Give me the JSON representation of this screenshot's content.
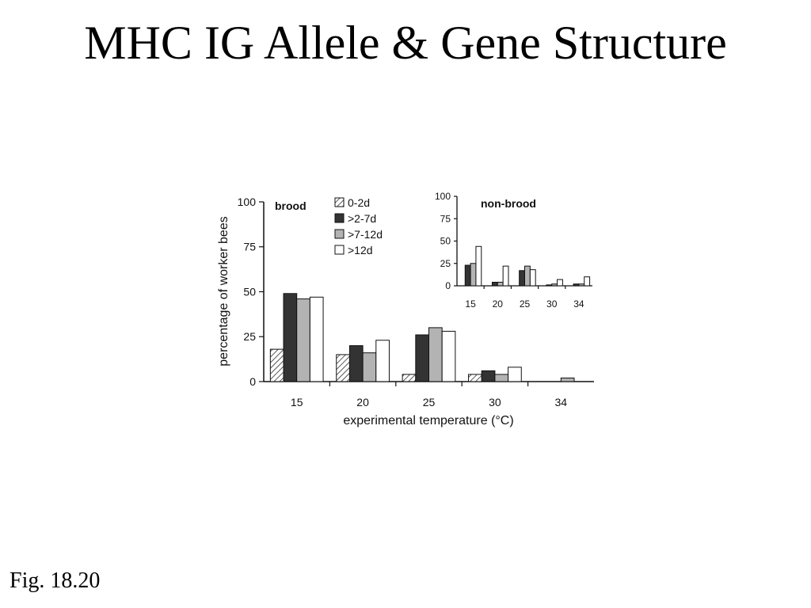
{
  "slide": {
    "title": "MHC IG Allele & Gene Structure",
    "caption": "Fig. 18.20"
  },
  "colors": {
    "s0": "#ffffff",
    "s1": "#333333",
    "s2": "#b3b3b3",
    "s3": "#ffffff",
    "stroke": "#111111"
  },
  "chart_data": [
    {
      "type": "bar",
      "panel": "main",
      "title": "brood",
      "categories": [
        "15",
        "20",
        "25",
        "30",
        "34"
      ],
      "series": [
        {
          "name": "0-2d",
          "values": [
            18,
            15,
            4,
            4,
            0
          ]
        },
        {
          "name": ">2-7d",
          "values": [
            49,
            20,
            26,
            6,
            0
          ]
        },
        {
          "name": ">7-12d",
          "values": [
            46,
            16,
            30,
            4,
            2
          ]
        },
        {
          "name": ">12d",
          "values": [
            47,
            23,
            28,
            8,
            0
          ]
        }
      ],
      "xlabel": "experimental temperature (°C)",
      "ylabel": "percentage of worker bees",
      "ylim": [
        0,
        100
      ],
      "yticks": [
        "0",
        "25",
        "50",
        "75",
        "100"
      ],
      "legend": "top-center",
      "grid": false
    },
    {
      "type": "bar",
      "panel": "inset",
      "title": "non-brood",
      "categories": [
        "15",
        "20",
        "25",
        "30",
        "34"
      ],
      "series": [
        {
          "name": "0-2d",
          "values": [
            0,
            0,
            0,
            0,
            0
          ]
        },
        {
          "name": ">2-7d",
          "values": [
            23,
            4,
            17,
            1,
            2
          ]
        },
        {
          "name": ">7-12d",
          "values": [
            25,
            4,
            22,
            2,
            2
          ]
        },
        {
          "name": ">12d",
          "values": [
            44,
            22,
            18,
            7,
            10
          ]
        }
      ],
      "ylim": [
        0,
        100
      ],
      "yticks": [
        "0",
        "25",
        "50",
        "75",
        "100"
      ],
      "grid": false
    }
  ]
}
